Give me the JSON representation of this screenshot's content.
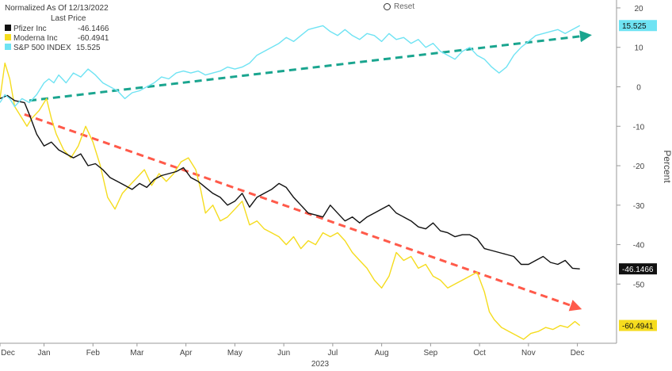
{
  "header": {
    "normalized_label": "Normalized As Of 12/13/2022",
    "last_price_label": "Last Price",
    "reset_label": "Reset"
  },
  "colors": {
    "pfizer": "#111111",
    "moderna": "#f5dc1e",
    "spx": "#6fe3f3",
    "trend_up": "#1aa58f",
    "trend_down": "#ff5a4a",
    "axis_text": "#444444"
  },
  "chart_data": {
    "type": "line",
    "title": "",
    "xlabel": "2023",
    "ylabel": "Percent",
    "ylim": [
      -65,
      22
    ],
    "xlim": [
      0,
      12.6
    ],
    "x_ticks": [
      {
        "label": "Dec",
        "pos": 0
      },
      {
        "label": "Jan",
        "pos": 0.9
      },
      {
        "label": "Feb",
        "pos": 1.9
      },
      {
        "label": "Mar",
        "pos": 2.8
      },
      {
        "label": "Apr",
        "pos": 3.8
      },
      {
        "label": "May",
        "pos": 4.8
      },
      {
        "label": "Jun",
        "pos": 5.8
      },
      {
        "label": "Jul",
        "pos": 6.8
      },
      {
        "label": "Aug",
        "pos": 7.8
      },
      {
        "label": "Sep",
        "pos": 8.8
      },
      {
        "label": "Oct",
        "pos": 9.8
      },
      {
        "label": "Nov",
        "pos": 10.8
      },
      {
        "label": "Dec",
        "pos": 11.8
      }
    ],
    "y_ticks": [
      20,
      10,
      0,
      -10,
      -20,
      -30,
      -40,
      -50
    ],
    "series": [
      {
        "name": "Pfizer Inc",
        "last_value": "-46.1466",
        "color_key": "pfizer",
        "points": [
          [
            0,
            -3
          ],
          [
            0.15,
            -2.2
          ],
          [
            0.3,
            -3.5
          ],
          [
            0.5,
            -4
          ],
          [
            0.6,
            -7
          ],
          [
            0.75,
            -12
          ],
          [
            0.9,
            -15
          ],
          [
            1.05,
            -14
          ],
          [
            1.2,
            -16
          ],
          [
            1.35,
            -17
          ],
          [
            1.5,
            -18
          ],
          [
            1.65,
            -17
          ],
          [
            1.8,
            -20
          ],
          [
            1.95,
            -19.5
          ],
          [
            2.1,
            -21
          ],
          [
            2.25,
            -23
          ],
          [
            2.4,
            -24
          ],
          [
            2.55,
            -25
          ],
          [
            2.7,
            -26
          ],
          [
            2.85,
            -24.5
          ],
          [
            3.0,
            -25.5
          ],
          [
            3.15,
            -23.5
          ],
          [
            3.3,
            -22.5
          ],
          [
            3.45,
            -22
          ],
          [
            3.6,
            -21.5
          ],
          [
            3.75,
            -20.5
          ],
          [
            3.9,
            -23
          ],
          [
            4.05,
            -24
          ],
          [
            4.2,
            -25.5
          ],
          [
            4.35,
            -27
          ],
          [
            4.5,
            -28
          ],
          [
            4.65,
            -30
          ],
          [
            4.8,
            -29
          ],
          [
            4.95,
            -27
          ],
          [
            5.1,
            -30.5
          ],
          [
            5.25,
            -28
          ],
          [
            5.4,
            -27
          ],
          [
            5.55,
            -26
          ],
          [
            5.7,
            -24.5
          ],
          [
            5.85,
            -25.5
          ],
          [
            6.0,
            -28
          ],
          [
            6.15,
            -30
          ],
          [
            6.3,
            -32
          ],
          [
            6.45,
            -32.5
          ],
          [
            6.6,
            -33
          ],
          [
            6.75,
            -30
          ],
          [
            6.9,
            -32
          ],
          [
            7.05,
            -34
          ],
          [
            7.2,
            -33
          ],
          [
            7.35,
            -34.5
          ],
          [
            7.5,
            -33
          ],
          [
            7.65,
            -32
          ],
          [
            7.8,
            -31
          ],
          [
            7.95,
            -30
          ],
          [
            8.1,
            -32
          ],
          [
            8.25,
            -33
          ],
          [
            8.4,
            -34
          ],
          [
            8.55,
            -35.5
          ],
          [
            8.7,
            -36
          ],
          [
            8.85,
            -34.5
          ],
          [
            9.0,
            -36.5
          ],
          [
            9.15,
            -37
          ],
          [
            9.3,
            -38
          ],
          [
            9.45,
            -37.5
          ],
          [
            9.6,
            -37.5
          ],
          [
            9.75,
            -38.5
          ],
          [
            9.9,
            -41
          ],
          [
            10.05,
            -41.5
          ],
          [
            10.2,
            -42
          ],
          [
            10.35,
            -42.5
          ],
          [
            10.5,
            -43
          ],
          [
            10.65,
            -45
          ],
          [
            10.8,
            -45
          ],
          [
            10.95,
            -44
          ],
          [
            11.1,
            -43
          ],
          [
            11.25,
            -44.5
          ],
          [
            11.4,
            -45
          ],
          [
            11.55,
            -44
          ],
          [
            11.7,
            -46
          ],
          [
            11.85,
            -46.1466
          ]
        ]
      },
      {
        "name": "Moderna Inc",
        "last_value": "-60.4941",
        "color_key": "moderna",
        "points": [
          [
            0,
            -3
          ],
          [
            0.1,
            6
          ],
          [
            0.2,
            2
          ],
          [
            0.3,
            -5
          ],
          [
            0.45,
            -8
          ],
          [
            0.55,
            -10
          ],
          [
            0.65,
            -8
          ],
          [
            0.8,
            -6
          ],
          [
            0.95,
            -3
          ],
          [
            1.05,
            -8
          ],
          [
            1.15,
            -12
          ],
          [
            1.3,
            -16
          ],
          [
            1.45,
            -18
          ],
          [
            1.6,
            -15
          ],
          [
            1.75,
            -10
          ],
          [
            1.9,
            -14
          ],
          [
            2.05,
            -20
          ],
          [
            2.2,
            -28
          ],
          [
            2.35,
            -31
          ],
          [
            2.5,
            -27
          ],
          [
            2.65,
            -25
          ],
          [
            2.8,
            -23
          ],
          [
            2.95,
            -21
          ],
          [
            3.1,
            -25
          ],
          [
            3.25,
            -22
          ],
          [
            3.4,
            -24
          ],
          [
            3.55,
            -22
          ],
          [
            3.7,
            -19
          ],
          [
            3.85,
            -18
          ],
          [
            4.0,
            -21
          ],
          [
            4.1,
            -26
          ],
          [
            4.2,
            -32
          ],
          [
            4.35,
            -30
          ],
          [
            4.5,
            -34
          ],
          [
            4.65,
            -33
          ],
          [
            4.8,
            -31
          ],
          [
            4.95,
            -29
          ],
          [
            5.1,
            -35
          ],
          [
            5.25,
            -34
          ],
          [
            5.4,
            -36
          ],
          [
            5.55,
            -37
          ],
          [
            5.7,
            -38
          ],
          [
            5.85,
            -40
          ],
          [
            6.0,
            -38
          ],
          [
            6.15,
            -41
          ],
          [
            6.3,
            -39
          ],
          [
            6.45,
            -40
          ],
          [
            6.6,
            -37
          ],
          [
            6.75,
            -38
          ],
          [
            6.9,
            -37
          ],
          [
            7.05,
            -39
          ],
          [
            7.2,
            -42
          ],
          [
            7.35,
            -44
          ],
          [
            7.5,
            -46
          ],
          [
            7.65,
            -49
          ],
          [
            7.8,
            -51
          ],
          [
            7.95,
            -48
          ],
          [
            8.1,
            -42
          ],
          [
            8.25,
            -44
          ],
          [
            8.4,
            -43
          ],
          [
            8.55,
            -46
          ],
          [
            8.7,
            -45
          ],
          [
            8.85,
            -48
          ],
          [
            9.0,
            -49
          ],
          [
            9.15,
            -51
          ],
          [
            9.3,
            -50
          ],
          [
            9.45,
            -49
          ],
          [
            9.6,
            -48
          ],
          [
            9.75,
            -47
          ],
          [
            9.9,
            -52
          ],
          [
            10.0,
            -57
          ],
          [
            10.1,
            -59
          ],
          [
            10.25,
            -61
          ],
          [
            10.4,
            -62
          ],
          [
            10.55,
            -63
          ],
          [
            10.7,
            -64
          ],
          [
            10.85,
            -62.5
          ],
          [
            11.0,
            -62
          ],
          [
            11.15,
            -61
          ],
          [
            11.3,
            -61.5
          ],
          [
            11.45,
            -60.5
          ],
          [
            11.6,
            -61
          ],
          [
            11.75,
            -59.5
          ],
          [
            11.85,
            -60.4941
          ]
        ]
      },
      {
        "name": "S&P 500 INDEX",
        "last_value": "15.525",
        "color_key": "spx",
        "points": [
          [
            0,
            -4
          ],
          [
            0.1,
            -2
          ],
          [
            0.2,
            -3
          ],
          [
            0.3,
            -5
          ],
          [
            0.45,
            -3
          ],
          [
            0.6,
            -4
          ],
          [
            0.75,
            -2
          ],
          [
            0.9,
            1
          ],
          [
            1.0,
            2
          ],
          [
            1.1,
            1
          ],
          [
            1.2,
            3
          ],
          [
            1.35,
            1
          ],
          [
            1.5,
            3.5
          ],
          [
            1.65,
            2.5
          ],
          [
            1.8,
            4.5
          ],
          [
            1.95,
            3
          ],
          [
            2.1,
            1
          ],
          [
            2.25,
            0
          ],
          [
            2.4,
            -1
          ],
          [
            2.55,
            -3
          ],
          [
            2.7,
            -1.5
          ],
          [
            2.85,
            -1
          ],
          [
            3.0,
            0
          ],
          [
            3.15,
            1
          ],
          [
            3.3,
            2.5
          ],
          [
            3.45,
            2
          ],
          [
            3.6,
            3.5
          ],
          [
            3.75,
            4
          ],
          [
            3.9,
            3.5
          ],
          [
            4.05,
            4
          ],
          [
            4.2,
            3
          ],
          [
            4.35,
            3.5
          ],
          [
            4.5,
            4
          ],
          [
            4.65,
            5
          ],
          [
            4.8,
            4.5
          ],
          [
            4.95,
            5
          ],
          [
            5.1,
            6
          ],
          [
            5.25,
            8
          ],
          [
            5.4,
            9
          ],
          [
            5.55,
            10
          ],
          [
            5.7,
            11
          ],
          [
            5.85,
            12.5
          ],
          [
            6.0,
            11.5
          ],
          [
            6.15,
            13
          ],
          [
            6.3,
            14.5
          ],
          [
            6.45,
            15
          ],
          [
            6.6,
            15.5
          ],
          [
            6.75,
            14
          ],
          [
            6.9,
            13
          ],
          [
            7.05,
            14.5
          ],
          [
            7.2,
            13
          ],
          [
            7.35,
            12
          ],
          [
            7.5,
            13.5
          ],
          [
            7.65,
            13
          ],
          [
            7.8,
            11.5
          ],
          [
            7.95,
            13.5
          ],
          [
            8.1,
            12
          ],
          [
            8.25,
            12.5
          ],
          [
            8.4,
            11
          ],
          [
            8.55,
            12
          ],
          [
            8.7,
            10
          ],
          [
            8.85,
            11
          ],
          [
            9.0,
            9
          ],
          [
            9.15,
            8
          ],
          [
            9.3,
            7
          ],
          [
            9.45,
            9
          ],
          [
            9.6,
            10
          ],
          [
            9.75,
            8
          ],
          [
            9.9,
            7
          ],
          [
            10.05,
            5
          ],
          [
            10.2,
            3.5
          ],
          [
            10.35,
            5
          ],
          [
            10.5,
            8
          ],
          [
            10.65,
            10
          ],
          [
            10.8,
            11.5
          ],
          [
            10.95,
            13
          ],
          [
            11.1,
            13.5
          ],
          [
            11.25,
            14
          ],
          [
            11.4,
            14.5
          ],
          [
            11.55,
            13.5
          ],
          [
            11.7,
            14.5
          ],
          [
            11.85,
            15.525
          ]
        ]
      }
    ],
    "trend_lines": [
      {
        "from": [
          0.6,
          -3.5
        ],
        "to": [
          12.0,
          13
        ],
        "color_key": "trend_up"
      },
      {
        "from": [
          0.5,
          -7
        ],
        "to": [
          11.8,
          -56
        ],
        "color_key": "trend_down"
      }
    ]
  }
}
